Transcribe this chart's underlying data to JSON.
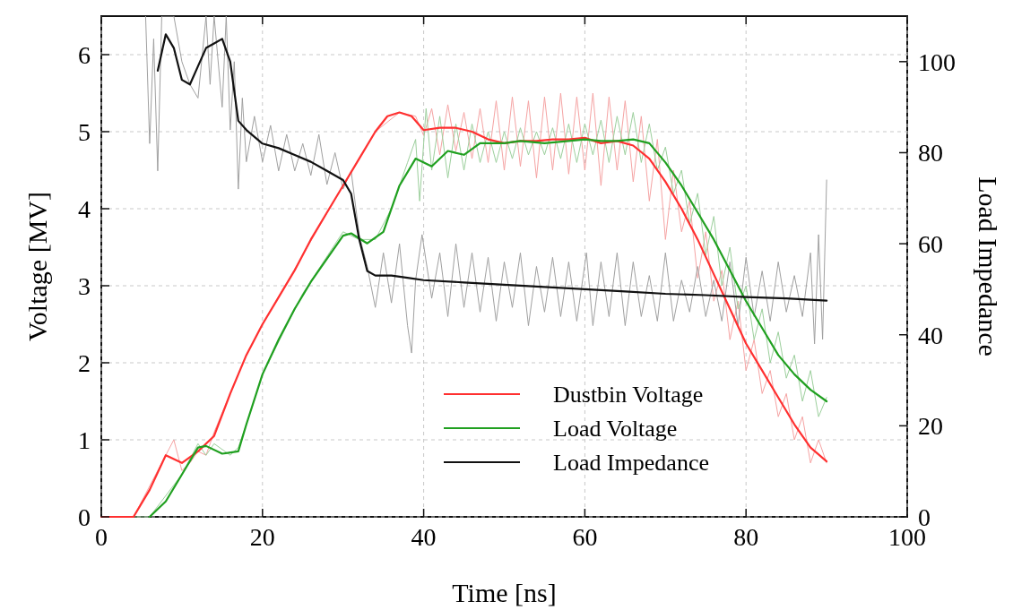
{
  "chart_data": {
    "type": "line",
    "xlabel": "Time [ns]",
    "ylabel": "Voltage [MV]",
    "y2label": "Load Impedance",
    "xlim": [
      0,
      100
    ],
    "xticks": [
      0,
      20,
      40,
      60,
      80,
      100
    ],
    "ylim": [
      0,
      6.5
    ],
    "yticks": [
      0,
      1,
      2,
      3,
      4,
      5,
      6
    ],
    "y2lim": [
      0,
      110
    ],
    "y2ticks": [
      0,
      20,
      40,
      60,
      80,
      100
    ],
    "grid": true,
    "legend": "bottom right",
    "line_style": "solid",
    "marker": "none",
    "series": [
      {
        "color": "#f5a3a3",
        "x": [
          0,
          4,
          8,
          9,
          10,
          11,
          12,
          13,
          14,
          16,
          18,
          20,
          25,
          30,
          34,
          37,
          39,
          40,
          41,
          42,
          43,
          44,
          45,
          46,
          47,
          48,
          49,
          50,
          51,
          52,
          53,
          54,
          55,
          56,
          57,
          58,
          59,
          60,
          61,
          62,
          63,
          64,
          65,
          66,
          67,
          68,
          69,
          70,
          71,
          72,
          73,
          74,
          75,
          76,
          77,
          78,
          79,
          80,
          81,
          82,
          83,
          84,
          85,
          86,
          87,
          88,
          89,
          90
        ],
        "values": [
          0,
          0,
          0.8,
          1.0,
          0.6,
          0.7,
          0.85,
          0.8,
          1.1,
          1.6,
          2.1,
          2.5,
          3.4,
          4.3,
          5.0,
          5.25,
          5.2,
          4.95,
          5.3,
          4.7,
          5.35,
          4.75,
          5.25,
          4.65,
          5.3,
          4.6,
          5.4,
          4.5,
          5.45,
          4.55,
          5.4,
          4.4,
          5.45,
          4.5,
          5.5,
          4.45,
          5.45,
          4.5,
          5.5,
          4.3,
          5.45,
          4.5,
          5.4,
          4.35,
          5.2,
          4.1,
          4.9,
          3.6,
          4.5,
          3.7,
          4.1,
          3.1,
          3.7,
          2.8,
          3.2,
          2.3,
          2.8,
          1.9,
          2.3,
          1.6,
          1.9,
          1.3,
          1.6,
          1.0,
          1.3,
          0.7,
          1.0,
          0.7
        ]
      },
      {
        "color": "#9ccf9c",
        "x": [
          0,
          6,
          10,
          12,
          13,
          14,
          16,
          17,
          18,
          20,
          25,
          30,
          32,
          34,
          36,
          38,
          39,
          39.5,
          40.3,
          41,
          42,
          43,
          44,
          45,
          46,
          47,
          48,
          49,
          50,
          51,
          52,
          53,
          54,
          55,
          56,
          57,
          58,
          59,
          60,
          61,
          62,
          63,
          64,
          65,
          66,
          67,
          68,
          69,
          70,
          71,
          72,
          73,
          74,
          75,
          76,
          77,
          78,
          79,
          80,
          81,
          82,
          83,
          84,
          85,
          86,
          87,
          88,
          89,
          90
        ],
        "values": [
          0,
          0,
          0.55,
          0.95,
          0.8,
          0.95,
          0.8,
          0.9,
          1.2,
          1.85,
          2.9,
          3.7,
          3.6,
          3.6,
          4.0,
          4.6,
          4.9,
          4.1,
          5.3,
          4.5,
          5.2,
          4.4,
          5.1,
          4.5,
          5.1,
          4.6,
          5.0,
          4.6,
          5.0,
          4.65,
          5.05,
          4.7,
          5.0,
          4.7,
          5.05,
          4.65,
          5.1,
          4.6,
          5.1,
          4.7,
          5.15,
          4.6,
          5.2,
          4.7,
          5.25,
          4.6,
          5.1,
          4.5,
          4.8,
          4.2,
          4.5,
          3.8,
          4.2,
          3.4,
          3.9,
          3.0,
          3.5,
          2.7,
          3.0,
          2.3,
          2.7,
          2.0,
          2.4,
          1.8,
          2.1,
          1.5,
          1.9,
          1.3,
          1.55
        ]
      },
      {
        "color": "#a0a0a0",
        "axis": "y2",
        "x": [
          5.5,
          6,
          6.5,
          7,
          7.5,
          9,
          10,
          11,
          12,
          13,
          13.5,
          14,
          15,
          15.5,
          16,
          16.5,
          17,
          17.5,
          18,
          19,
          20,
          21,
          22,
          23,
          24,
          25,
          26,
          27,
          28,
          29,
          30,
          31,
          32,
          33,
          34,
          35,
          36,
          37,
          38,
          38.5,
          39,
          39.8,
          41,
          42,
          43,
          44,
          45,
          46,
          47,
          48,
          49,
          50,
          51,
          52,
          53,
          54,
          55,
          56,
          57,
          58,
          59,
          60.2,
          61,
          62,
          63,
          64,
          65,
          66,
          67,
          68,
          69,
          70,
          71,
          72,
          73,
          74,
          75,
          76,
          77,
          78,
          79,
          80,
          81,
          82,
          83,
          84,
          85,
          86,
          87,
          88,
          88.5,
          89,
          89.5,
          90
        ],
        "values": [
          110,
          82,
          105,
          76,
          110,
          110,
          100,
          95,
          92,
          110,
          95,
          110,
          90,
          110,
          85,
          100,
          72,
          92,
          78,
          88,
          78,
          86,
          76,
          84,
          76,
          82,
          75,
          84,
          73,
          80,
          72,
          76,
          62,
          55,
          46,
          58,
          47,
          60,
          42,
          36,
          52,
          62,
          48,
          58,
          44,
          60,
          46,
          58,
          45,
          57,
          43,
          56,
          46,
          58,
          42,
          55,
          45,
          57,
          44,
          56,
          43,
          58,
          42,
          56,
          44,
          58,
          42,
          56,
          44,
          53,
          43,
          58,
          43,
          52,
          45,
          55,
          44,
          52,
          43,
          56,
          42,
          57,
          44,
          54,
          43,
          56,
          45,
          53,
          44,
          58,
          38,
          62,
          39,
          74
        ]
      },
      {
        "name": "Dustbin Voltage",
        "color": "#ff3030",
        "x": [
          0,
          4,
          6,
          8,
          10,
          12,
          14,
          16,
          18,
          20,
          22,
          24,
          26,
          28,
          30,
          32,
          34,
          35.5,
          37,
          38.5,
          40,
          42,
          44,
          46,
          48,
          50,
          52,
          54,
          56,
          58,
          60,
          62,
          64,
          66,
          68,
          70,
          72,
          74,
          76,
          78,
          80,
          82,
          84,
          86,
          88,
          90
        ],
        "values": [
          0,
          0,
          0.35,
          0.8,
          0.7,
          0.85,
          1.05,
          1.6,
          2.1,
          2.5,
          2.85,
          3.2,
          3.6,
          3.95,
          4.3,
          4.65,
          5.0,
          5.2,
          5.25,
          5.2,
          5.02,
          5.05,
          5.05,
          5.0,
          4.9,
          4.85,
          4.88,
          4.88,
          4.9,
          4.9,
          4.92,
          4.85,
          4.88,
          4.82,
          4.65,
          4.35,
          4.0,
          3.6,
          3.15,
          2.7,
          2.25,
          1.9,
          1.55,
          1.2,
          0.9,
          0.72
        ]
      },
      {
        "name": "Load Voltage",
        "color": "#20a020",
        "x": [
          6,
          8,
          10,
          12,
          13,
          15,
          17,
          18,
          20,
          22,
          24,
          26,
          28,
          30,
          31,
          33,
          35,
          37,
          39,
          41,
          43,
          45,
          47,
          50,
          52,
          55,
          58,
          60,
          62,
          64,
          66,
          68,
          70,
          72,
          74,
          76,
          78,
          80,
          82,
          84,
          86,
          88,
          90
        ],
        "values": [
          0,
          0.2,
          0.55,
          0.9,
          0.92,
          0.82,
          0.85,
          1.2,
          1.85,
          2.3,
          2.7,
          3.05,
          3.35,
          3.65,
          3.68,
          3.55,
          3.7,
          4.3,
          4.65,
          4.55,
          4.75,
          4.7,
          4.85,
          4.85,
          4.88,
          4.85,
          4.88,
          4.9,
          4.88,
          4.88,
          4.9,
          4.85,
          4.6,
          4.3,
          3.95,
          3.6,
          3.2,
          2.8,
          2.45,
          2.1,
          1.85,
          1.65,
          1.5
        ]
      },
      {
        "name": "Load Impedance",
        "color": "#111111",
        "axis": "y2",
        "x": [
          7,
          8,
          9,
          10,
          11,
          12,
          13,
          14,
          15,
          16,
          17,
          18,
          20,
          22,
          24,
          26,
          28,
          30,
          31,
          32,
          33,
          34,
          36,
          38,
          40,
          45,
          50,
          55,
          60,
          65,
          70,
          75,
          80,
          85,
          90
        ],
        "values": [
          98,
          106,
          103,
          96,
          95,
          99,
          103,
          104,
          105,
          100,
          87,
          85,
          82,
          81,
          79.5,
          78,
          76,
          74,
          71,
          61,
          54,
          53,
          53,
          52.5,
          52,
          51.5,
          51,
          50.5,
          50,
          49.5,
          49,
          48.7,
          48.3,
          48,
          47.5
        ]
      }
    ]
  }
}
